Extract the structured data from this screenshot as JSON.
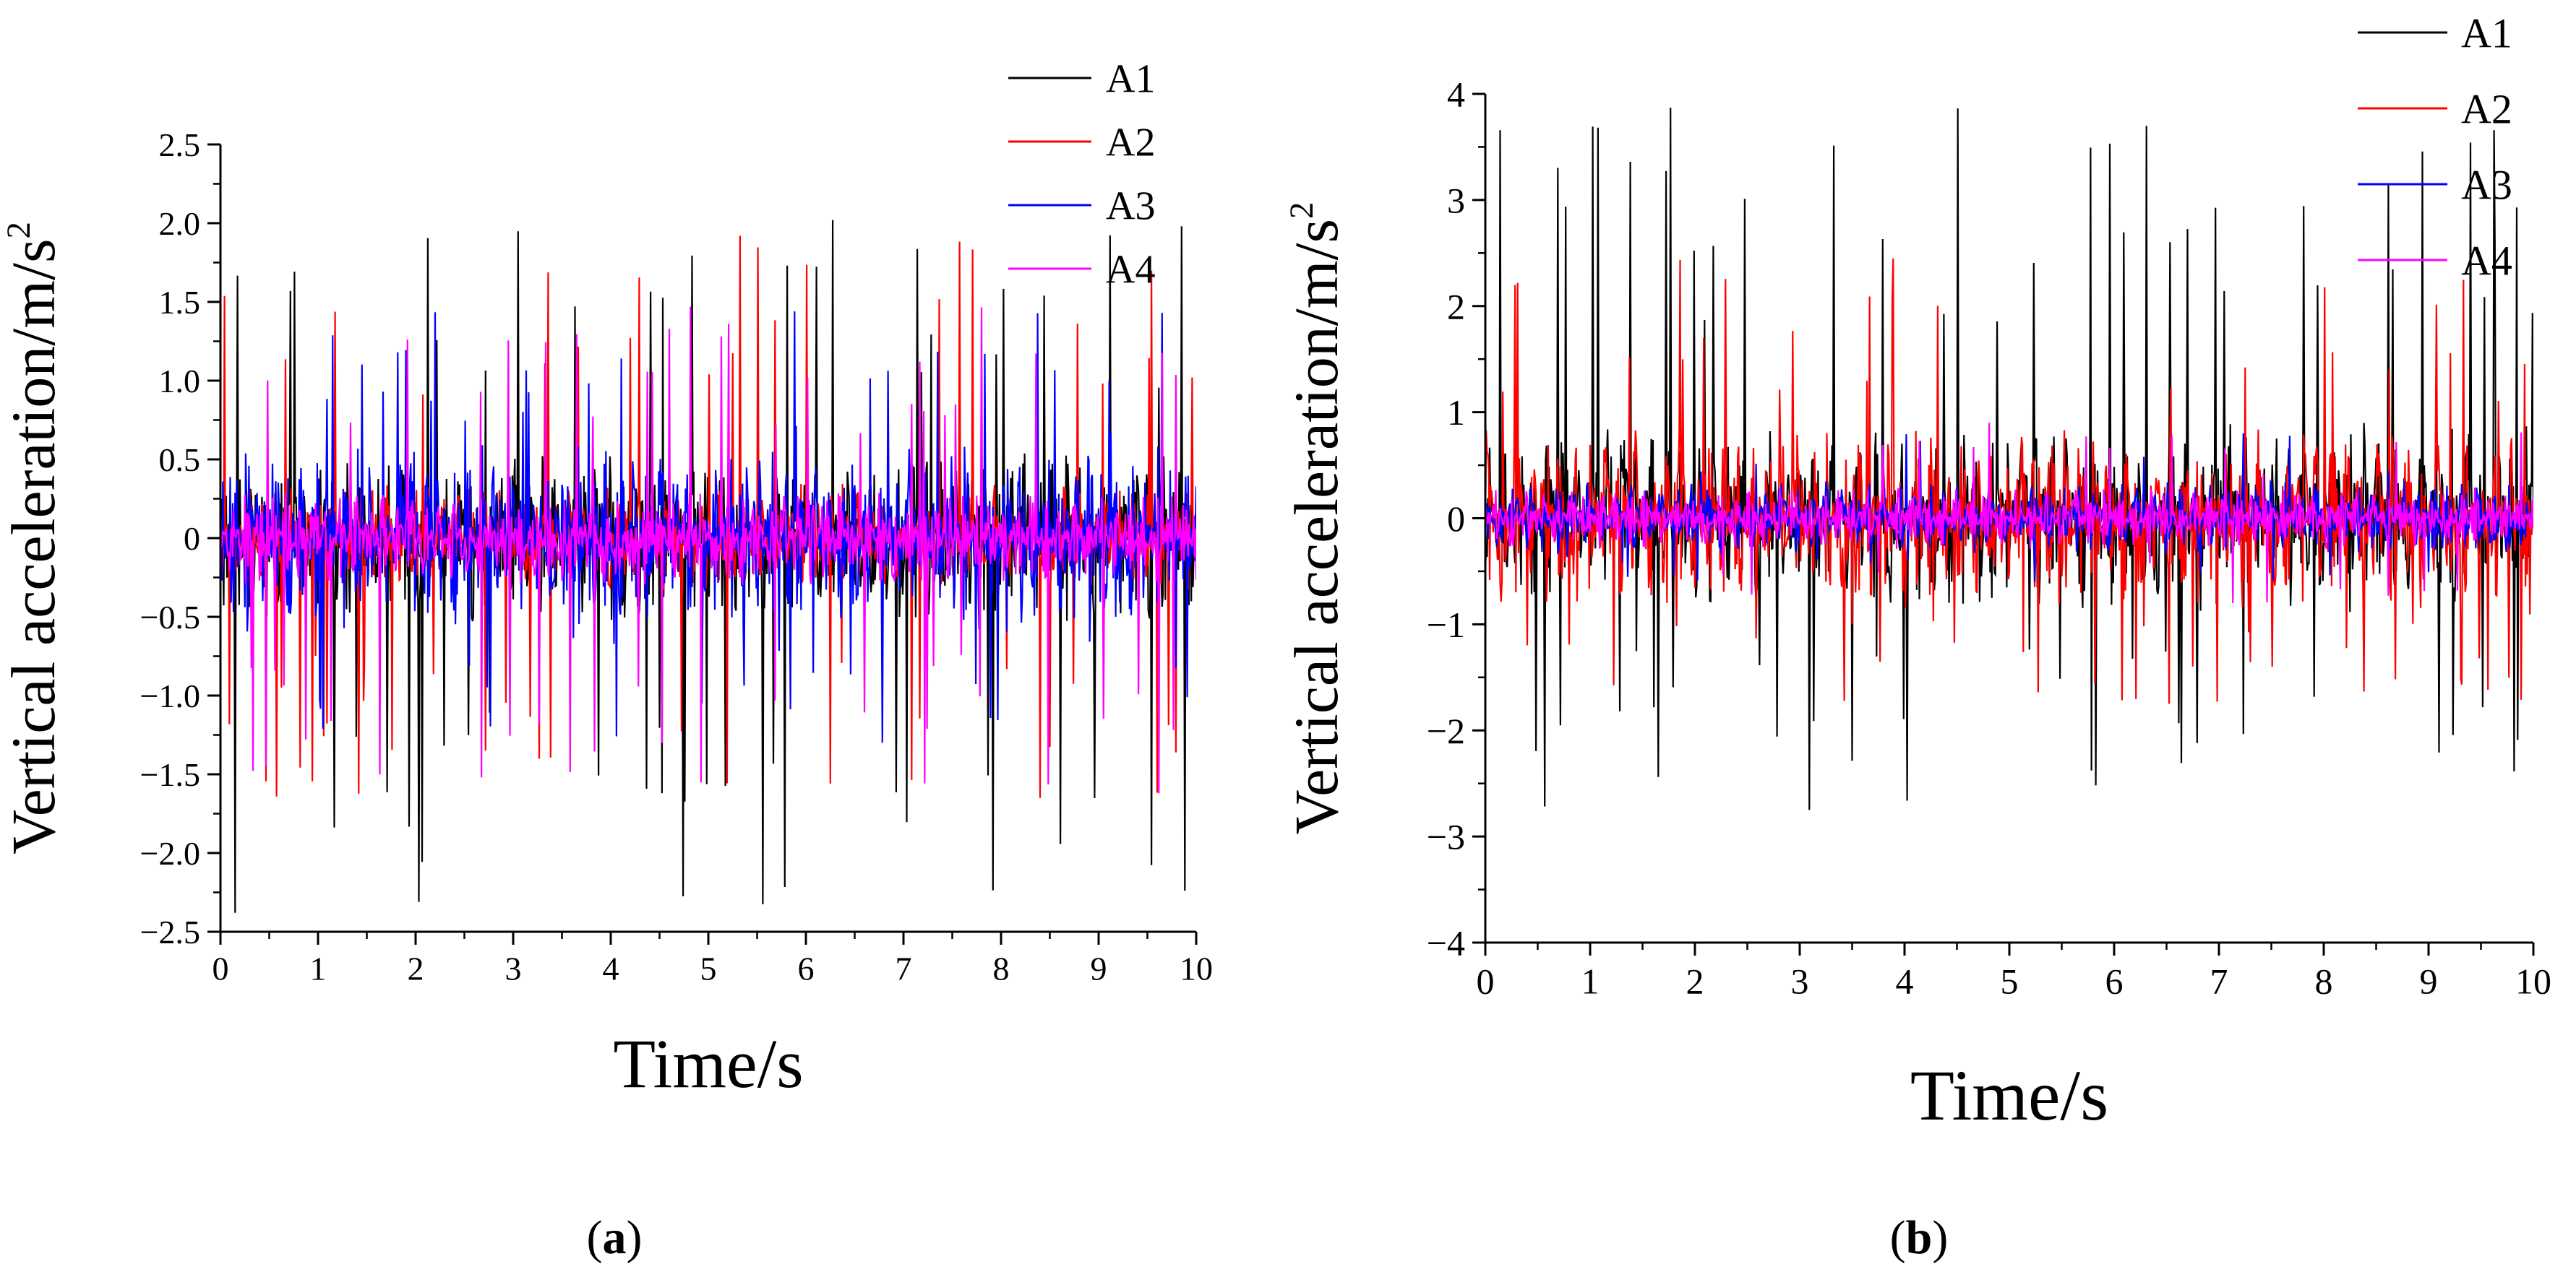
{
  "colors": {
    "A1": "#000000",
    "A2": "#ff0000",
    "A3": "#0000ff",
    "A4": "#ff00ff"
  },
  "chart_data": [
    {
      "type": "line",
      "panel_label": "a",
      "title": "",
      "xlabel": "Time/s",
      "ylabel": "Vertical acceleration/m/s",
      "ylabel_superscript": "2",
      "xlim": [
        0,
        10
      ],
      "ylim": [
        -2.5,
        2.5
      ],
      "xticks": [
        0,
        1,
        2,
        3,
        4,
        5,
        6,
        7,
        8,
        9,
        10
      ],
      "xtick_labels": [
        "0",
        "1",
        "2",
        "3",
        "4",
        "5",
        "6",
        "7",
        "8",
        "9",
        "10"
      ],
      "yticks": [
        -2.5,
        -2.0,
        -1.5,
        -1.0,
        -0.5,
        0,
        0.5,
        1.0,
        1.5,
        2.0,
        2.5
      ],
      "ytick_labels": [
        "−2.5",
        "−2.0",
        "−1.5",
        "−1.0",
        "−0.5",
        "0",
        "0.5",
        "1.0",
        "1.5",
        "2.0",
        "2.5"
      ],
      "legend": {
        "position": "top-right",
        "entries": [
          "A1",
          "A2",
          "A3",
          "A4"
        ]
      },
      "series": [
        {
          "name": "A1",
          "color": "#000000",
          "peak_max": 2.02,
          "peak_min": -2.38,
          "band": 0.55,
          "spike_count": 50
        },
        {
          "name": "A2",
          "color": "#ff0000",
          "peak_max": 1.92,
          "peak_min": -1.65,
          "band": 0.35,
          "spike_count": 55
        },
        {
          "name": "A3",
          "color": "#0000ff",
          "peak_max": 1.44,
          "peak_min": -1.3,
          "band": 0.6,
          "spike_count": 45
        },
        {
          "name": "A4",
          "color": "#ff00ff",
          "peak_max": 1.47,
          "peak_min": -1.62,
          "band": 0.3,
          "spike_count": 55
        }
      ]
    },
    {
      "type": "line",
      "panel_label": "b",
      "title": "",
      "xlabel": "Time/s",
      "ylabel": "Vertical acceleration/m/s",
      "ylabel_superscript": "2",
      "xlim": [
        0,
        10
      ],
      "ylim": [
        -4,
        4
      ],
      "xticks": [
        0,
        1,
        2,
        3,
        4,
        5,
        6,
        7,
        8,
        9,
        10
      ],
      "xtick_labels": [
        "0",
        "1",
        "2",
        "3",
        "4",
        "5",
        "6",
        "7",
        "8",
        "9",
        "10"
      ],
      "yticks": [
        -4,
        -3,
        -2,
        -1,
        0,
        1,
        2,
        3,
        4
      ],
      "ytick_labels": [
        "−4",
        "−3",
        "−2",
        "−1",
        "0",
        "1",
        "2",
        "3",
        "4"
      ],
      "legend": {
        "position": "top-right",
        "entries": [
          "A1",
          "A2",
          "A3",
          "A4"
        ]
      },
      "series": [
        {
          "name": "A1",
          "color": "#000000",
          "peak_max": 3.87,
          "peak_min": -2.75,
          "band": 0.9,
          "spike_count": 70
        },
        {
          "name": "A2",
          "color": "#ff0000",
          "peak_max": 2.45,
          "peak_min": -1.75,
          "band": 0.85,
          "spike_count": 60
        },
        {
          "name": "A3",
          "color": "#0000ff",
          "peak_max": 0.8,
          "peak_min": -0.6,
          "band": 0.35,
          "spike_count": 20
        },
        {
          "name": "A4",
          "color": "#ff00ff",
          "peak_max": 0.9,
          "peak_min": -0.8,
          "band": 0.3,
          "spike_count": 20
        }
      ]
    }
  ]
}
